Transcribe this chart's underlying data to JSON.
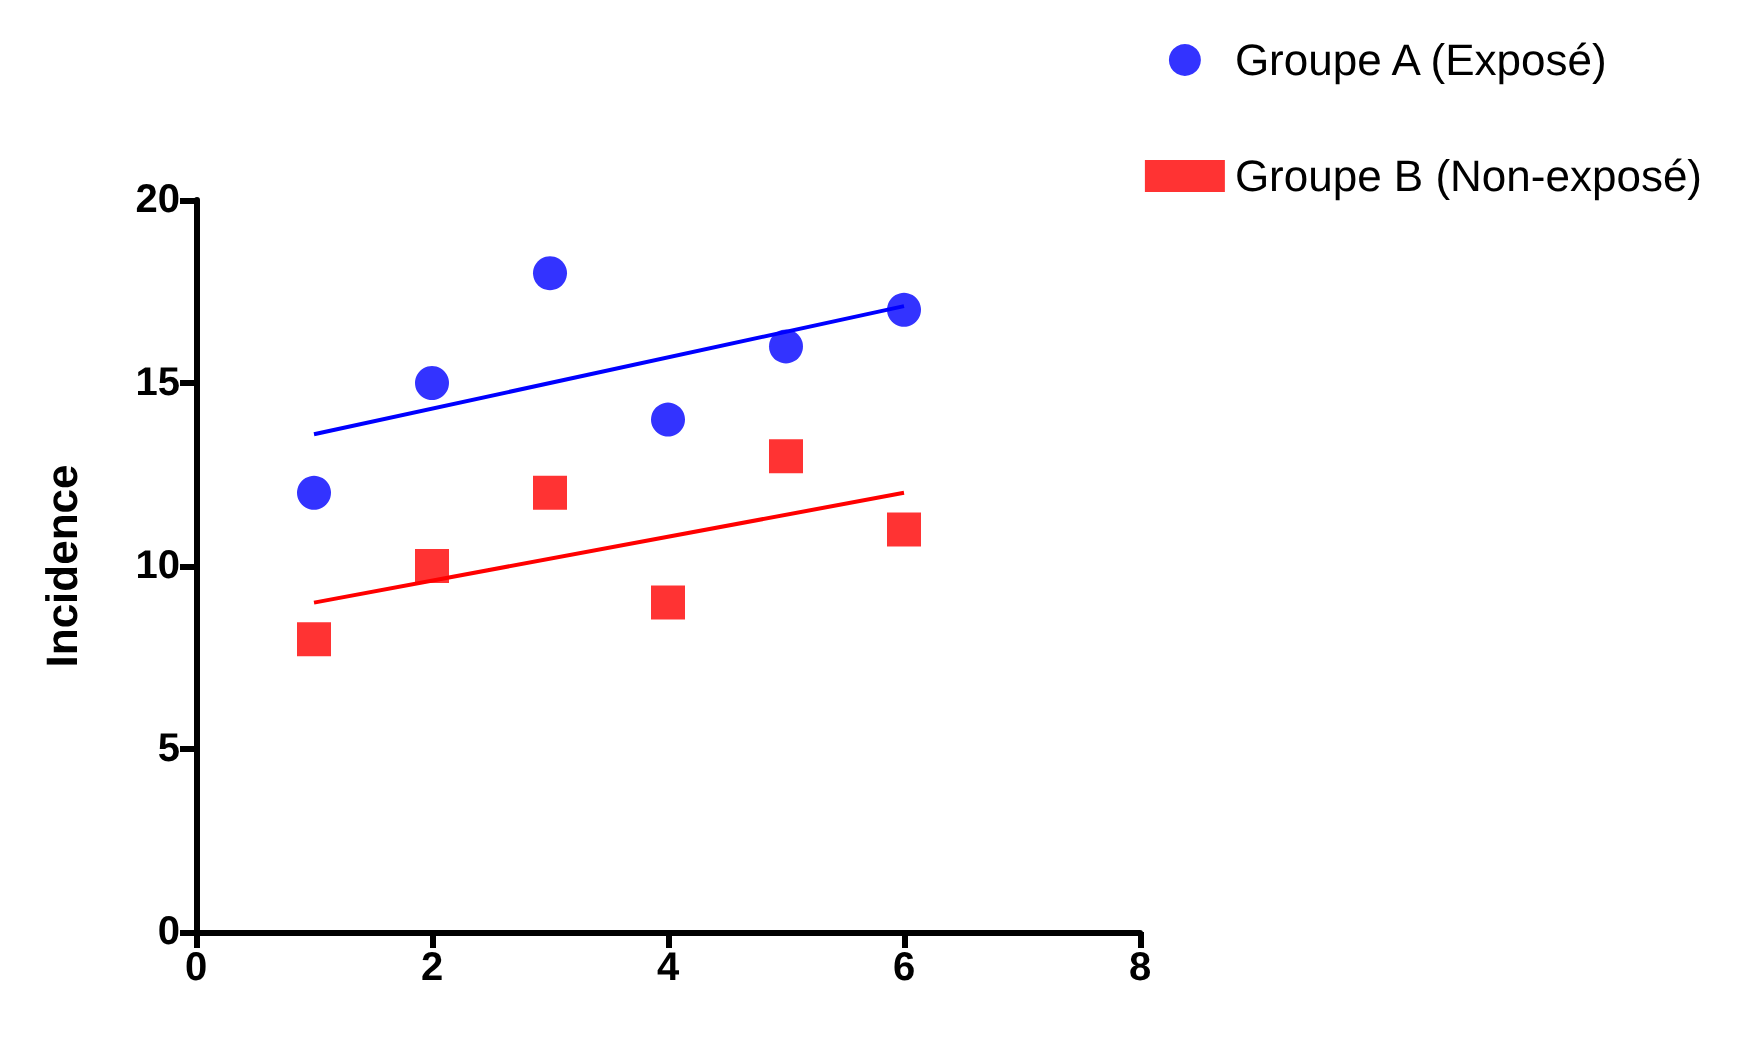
{
  "chart_data": {
    "type": "scatter",
    "ylabel": "Incidence",
    "xlim": [
      0,
      8
    ],
    "xticks": [
      0,
      2,
      4,
      6,
      8
    ],
    "ylim": [
      0,
      20
    ],
    "yticks": [
      0,
      5,
      10,
      15,
      20
    ],
    "grid": false,
    "legend": "top right",
    "series": [
      {
        "name": "Groupe A (Exposé)",
        "color": "#0000ff",
        "marker": "circle",
        "x": [
          1,
          2,
          3,
          4,
          5,
          6
        ],
        "values": [
          12,
          15,
          18,
          14,
          16,
          17
        ]
      },
      {
        "name": "Groupe B (Non-exposé)",
        "color": "#ff0000",
        "marker": "square",
        "x": [
          1,
          2,
          3,
          4,
          5,
          6
        ],
        "values": [
          8,
          10,
          12,
          9,
          13,
          11
        ]
      },
      {
        "type": "line",
        "color": "#0000ff",
        "marker": "none",
        "x": [
          1,
          6
        ],
        "values": [
          13.6,
          17.1
        ]
      },
      {
        "type": "line",
        "color": "#ff0000",
        "marker": "none",
        "x": [
          1,
          6
        ],
        "values": [
          9,
          12
        ]
      }
    ]
  }
}
